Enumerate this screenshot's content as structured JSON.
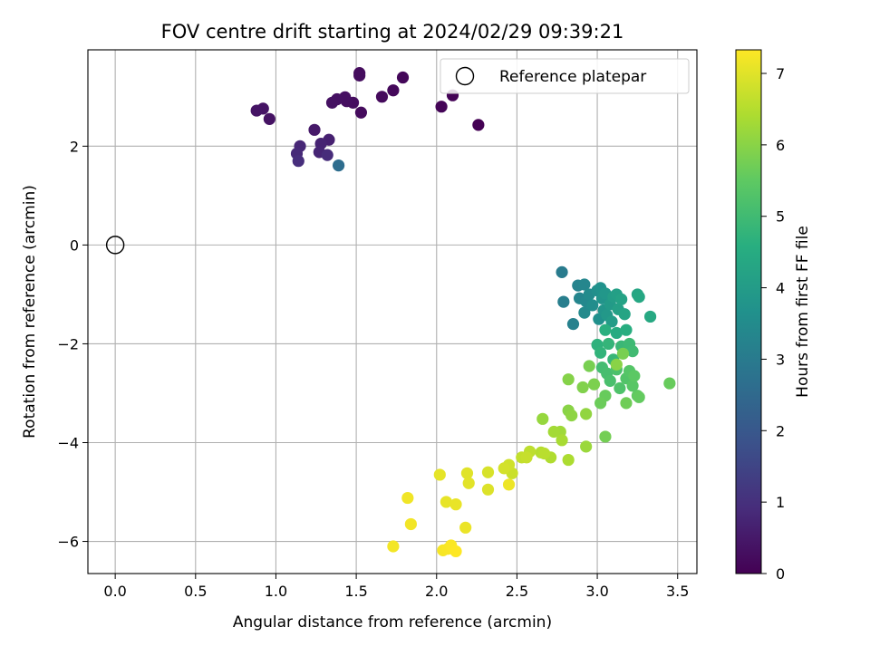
{
  "chart_data": {
    "type": "scatter",
    "title": "FOV centre drift starting at 2024/02/29 09:39:21",
    "xlabel": "Angular distance from reference (arcmin)",
    "ylabel": "Rotation from reference (arcmin)",
    "xlim": [
      -0.17,
      3.62
    ],
    "ylim": [
      -6.65,
      3.95
    ],
    "xticks": [
      0.0,
      0.5,
      1.0,
      1.5,
      2.0,
      2.5,
      3.0,
      3.5
    ],
    "xtick_labels": [
      "0.0",
      "0.5",
      "1.0",
      "1.5",
      "2.0",
      "2.5",
      "3.0",
      "3.5"
    ],
    "yticks": [
      -6,
      -4,
      -2,
      0,
      2
    ],
    "ytick_labels": [
      "−6",
      "−4",
      "−2",
      "0",
      "2"
    ],
    "grid": true,
    "legend": {
      "placement": "top-right",
      "entries": [
        {
          "label": "Reference platepar",
          "marker": "open-circle"
        }
      ]
    },
    "reference_point": {
      "x": 0.0,
      "y": 0.0
    },
    "colorbar": {
      "label": "Hours from first FF file",
      "colormap": "viridis",
      "range": [
        0,
        7.33
      ],
      "ticks": [
        0,
        1,
        2,
        3,
        4,
        5,
        6,
        7
      ],
      "tick_labels": [
        "0",
        "1",
        "2",
        "3",
        "4",
        "5",
        "6",
        "7"
      ]
    },
    "series": [
      {
        "points": [
          [
            2.26,
            2.43,
            0.0
          ],
          [
            2.1,
            3.03,
            0.05
          ],
          [
            2.03,
            2.8,
            0.08
          ],
          [
            1.79,
            3.39,
            0.12
          ],
          [
            1.73,
            3.13,
            0.15
          ],
          [
            1.66,
            3.0,
            0.18
          ],
          [
            1.53,
            2.68,
            0.2
          ],
          [
            1.52,
            3.48,
            0.22
          ],
          [
            1.52,
            3.43,
            0.24
          ],
          [
            1.48,
            2.88,
            0.26
          ],
          [
            1.44,
            2.91,
            0.28
          ],
          [
            1.43,
            2.99,
            0.3
          ],
          [
            1.38,
            2.95,
            0.32
          ],
          [
            1.35,
            2.88,
            0.34
          ],
          [
            0.96,
            2.55,
            0.36
          ],
          [
            0.92,
            2.76,
            0.38
          ],
          [
            0.88,
            2.72,
            0.4
          ],
          [
            1.24,
            2.33,
            0.5
          ],
          [
            1.33,
            2.13,
            0.65
          ],
          [
            1.28,
            2.05,
            0.7
          ],
          [
            1.27,
            1.88,
            0.75
          ],
          [
            1.15,
            2.0,
            0.8
          ],
          [
            1.13,
            1.85,
            0.85
          ],
          [
            1.32,
            1.82,
            0.9
          ],
          [
            1.14,
            1.7,
            0.95
          ],
          [
            1.39,
            1.61,
            2.6
          ],
          [
            2.78,
            -0.55,
            3.0
          ],
          [
            2.79,
            -1.15,
            3.1
          ],
          [
            2.85,
            -1.6,
            3.2
          ],
          [
            2.88,
            -0.82,
            3.25
          ],
          [
            2.89,
            -1.08,
            3.3
          ],
          [
            2.92,
            -0.8,
            3.35
          ],
          [
            2.93,
            -1.14,
            3.4
          ],
          [
            2.92,
            -1.37,
            3.45
          ],
          [
            2.95,
            -1.0,
            3.5
          ],
          [
            2.97,
            -1.22,
            3.55
          ],
          [
            3.0,
            -0.92,
            3.6
          ],
          [
            3.01,
            -1.5,
            3.65
          ],
          [
            3.02,
            -0.87,
            3.7
          ],
          [
            3.03,
            -1.08,
            3.75
          ],
          [
            3.04,
            -1.32,
            3.8
          ],
          [
            3.05,
            -0.98,
            3.85
          ],
          [
            3.06,
            -1.42,
            3.9
          ],
          [
            3.08,
            -1.2,
            3.95
          ],
          [
            3.09,
            -1.55,
            4.0
          ],
          [
            3.1,
            -1.05,
            4.05
          ],
          [
            3.12,
            -1.0,
            4.1
          ],
          [
            3.13,
            -1.3,
            4.15
          ],
          [
            3.15,
            -1.1,
            4.2
          ],
          [
            3.17,
            -1.4,
            4.25
          ],
          [
            3.25,
            -1.0,
            4.3
          ],
          [
            3.26,
            -1.05,
            4.35
          ],
          [
            3.33,
            -1.45,
            4.4
          ],
          [
            3.12,
            -1.78,
            4.5
          ],
          [
            3.18,
            -1.72,
            4.55
          ],
          [
            3.05,
            -1.72,
            4.6
          ],
          [
            3.0,
            -2.02,
            4.7
          ],
          [
            3.02,
            -2.18,
            4.75
          ],
          [
            3.07,
            -2.0,
            4.8
          ],
          [
            3.1,
            -2.32,
            4.85
          ],
          [
            3.15,
            -2.05,
            4.9
          ],
          [
            3.2,
            -2.0,
            4.95
          ],
          [
            3.22,
            -2.15,
            5.0
          ],
          [
            3.03,
            -2.48,
            5.05
          ],
          [
            3.06,
            -2.6,
            5.1
          ],
          [
            3.08,
            -2.75,
            5.15
          ],
          [
            3.12,
            -2.52,
            5.2
          ],
          [
            3.14,
            -2.9,
            5.25
          ],
          [
            3.18,
            -2.7,
            5.3
          ],
          [
            3.2,
            -2.55,
            5.35
          ],
          [
            3.22,
            -2.85,
            5.4
          ],
          [
            3.23,
            -2.65,
            5.45
          ],
          [
            3.25,
            -3.05,
            5.5
          ],
          [
            3.26,
            -3.08,
            5.55
          ],
          [
            3.05,
            -3.05,
            5.6
          ],
          [
            3.02,
            -3.2,
            5.65
          ],
          [
            3.18,
            -3.2,
            5.7
          ],
          [
            3.05,
            -3.88,
            5.75
          ],
          [
            2.95,
            -2.45,
            5.8
          ],
          [
            2.98,
            -2.82,
            5.85
          ],
          [
            2.91,
            -2.88,
            5.9
          ],
          [
            2.82,
            -2.72,
            5.95
          ],
          [
            3.45,
            -2.8,
            5.6
          ],
          [
            3.16,
            -2.2,
            5.8
          ],
          [
            3.12,
            -2.42,
            6.0
          ],
          [
            2.82,
            -3.35,
            6.0
          ],
          [
            2.84,
            -3.45,
            6.05
          ],
          [
            2.93,
            -3.42,
            6.1
          ],
          [
            2.66,
            -3.52,
            6.15
          ],
          [
            2.93,
            -4.08,
            6.2
          ],
          [
            2.77,
            -3.78,
            6.25
          ],
          [
            2.73,
            -3.78,
            6.3
          ],
          [
            2.78,
            -3.95,
            6.35
          ],
          [
            2.82,
            -4.35,
            6.4
          ],
          [
            2.71,
            -4.3,
            6.45
          ],
          [
            2.65,
            -4.2,
            6.5
          ],
          [
            2.67,
            -4.22,
            6.55
          ],
          [
            2.58,
            -4.18,
            6.6
          ],
          [
            2.53,
            -4.3,
            6.65
          ],
          [
            2.56,
            -4.3,
            6.7
          ],
          [
            2.47,
            -4.62,
            6.75
          ],
          [
            2.45,
            -4.45,
            6.8
          ],
          [
            2.42,
            -4.52,
            6.85
          ],
          [
            2.32,
            -4.6,
            6.9
          ],
          [
            2.32,
            -4.95,
            6.95
          ],
          [
            2.19,
            -4.62,
            7.0
          ],
          [
            2.2,
            -4.82,
            7.02
          ],
          [
            2.02,
            -4.65,
            7.05
          ],
          [
            2.06,
            -5.2,
            7.08
          ],
          [
            2.12,
            -5.25,
            7.1
          ],
          [
            2.18,
            -5.72,
            7.12
          ],
          [
            2.45,
            -4.85,
            7.15
          ],
          [
            1.82,
            -5.12,
            7.18
          ],
          [
            1.84,
            -5.65,
            7.2
          ],
          [
            1.73,
            -6.1,
            7.22
          ],
          [
            2.04,
            -6.18,
            7.25
          ],
          [
            2.07,
            -6.15,
            7.27
          ],
          [
            2.09,
            -6.08,
            7.3
          ],
          [
            2.12,
            -6.2,
            7.33
          ]
        ]
      }
    ]
  }
}
